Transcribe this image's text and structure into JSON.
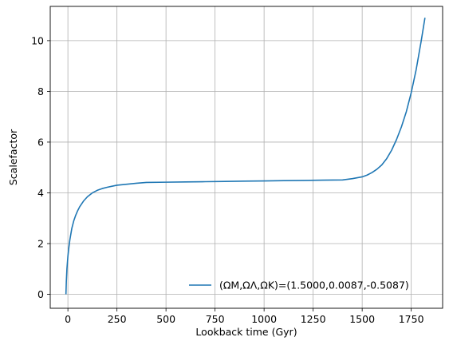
{
  "chart_data": {
    "type": "line",
    "title": "",
    "xlabel": "Lookback time (Gyr)",
    "ylabel": "Scalefactor",
    "xlim": [
      -90,
      1910
    ],
    "ylim": [
      -0.55,
      11.35
    ],
    "xticks": [
      0,
      250,
      500,
      750,
      1000,
      1250,
      1500,
      1750
    ],
    "yticks": [
      0,
      2,
      4,
      6,
      8,
      10
    ],
    "grid": true,
    "legend_position": "lower-right",
    "series": [
      {
        "name": "(ΩM,ΩΛ,ΩK)=(1.5000,0.0087,-0.5087)",
        "color": "#1f77b4",
        "x": [
          -10,
          -8,
          -5,
          0,
          5,
          10,
          20,
          30,
          40,
          50,
          60,
          80,
          100,
          125,
          150,
          175,
          200,
          225,
          250,
          300,
          350,
          400,
          500,
          600,
          700,
          800,
          900,
          1000,
          1100,
          1200,
          1300,
          1400,
          1450,
          1500,
          1525,
          1550,
          1575,
          1600,
          1625,
          1650,
          1675,
          1700,
          1725,
          1750,
          1775,
          1800,
          1820
        ],
        "y": [
          0,
          0.5,
          1.0,
          1.5,
          1.85,
          2.15,
          2.6,
          2.9,
          3.12,
          3.3,
          3.45,
          3.68,
          3.85,
          4.0,
          4.1,
          4.17,
          4.22,
          4.26,
          4.3,
          4.34,
          4.38,
          4.41,
          4.42,
          4.43,
          4.44,
          4.45,
          4.46,
          4.47,
          4.48,
          4.49,
          4.5,
          4.51,
          4.56,
          4.63,
          4.7,
          4.8,
          4.93,
          5.1,
          5.35,
          5.68,
          6.1,
          6.6,
          7.2,
          7.95,
          8.85,
          9.95,
          10.9
        ]
      }
    ]
  }
}
